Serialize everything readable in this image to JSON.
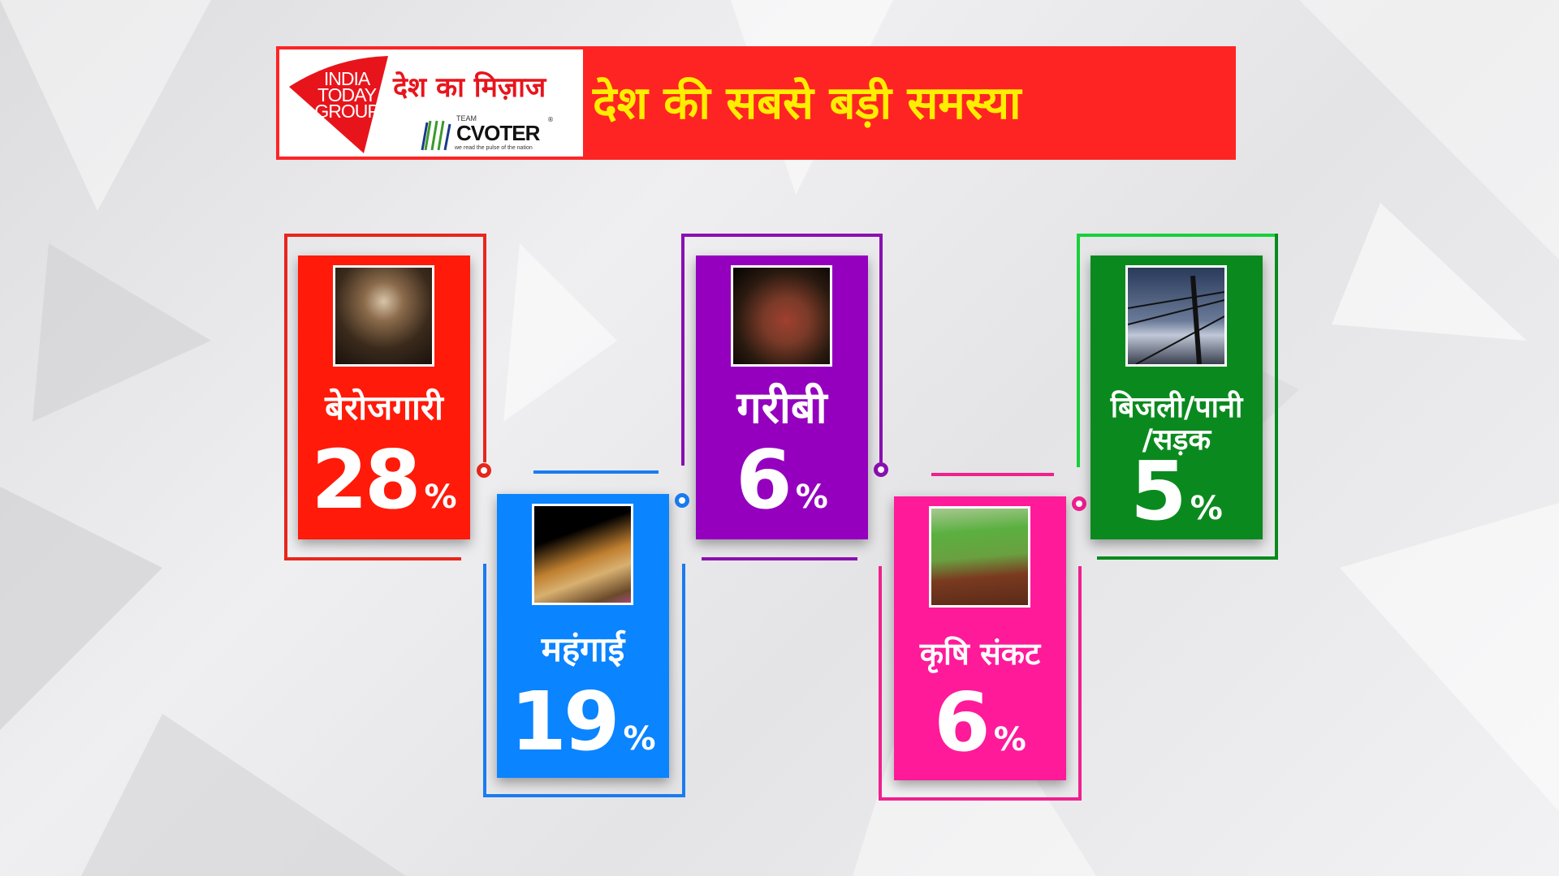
{
  "header": {
    "logo_india_today": [
      "INDIA",
      "TODAY",
      "GROUP"
    ],
    "logo_desh_ka_mizaj": "देश का मिज़ाज",
    "logo_cvoter_team": "TEAM",
    "logo_cvoter_name": "CVOTER",
    "logo_cvoter_tagline": "we read the pulse of the nation",
    "title": "देश की सबसे बड़ी समस्या",
    "background_color": "#ff2424",
    "title_color": "#ffee00"
  },
  "cards": [
    {
      "label": "बेरोजगारी",
      "value": "28",
      "unit": "%",
      "color": "#ff1a0a",
      "frame_color": "#e8261c",
      "image": "worried-man-photo"
    },
    {
      "label": "महंगाई",
      "value": "19",
      "unit": "%",
      "color": "#0a84ff",
      "frame_color": "#1a7cf0",
      "image": "coins-stack-photo"
    },
    {
      "label": "गरीबी",
      "value": "6",
      "unit": "%",
      "color": "#9500bf",
      "frame_color": "#8a10b0",
      "image": "poor-mother-child-photo"
    },
    {
      "label": "कृषि संकट",
      "value": "6",
      "unit": "%",
      "color": "#ff1a9a",
      "frame_color": "#f0208e",
      "image": "farmer-field-photo"
    },
    {
      "label": "बिजली/पानी /सड़क",
      "label_line1": "बिजली/पानी",
      "label_line2": "/सड़क",
      "value": "5",
      "unit": "%",
      "color": "#0a8a1e",
      "frame_color": "#18d03a",
      "image": "power-pole-photo"
    }
  ]
}
